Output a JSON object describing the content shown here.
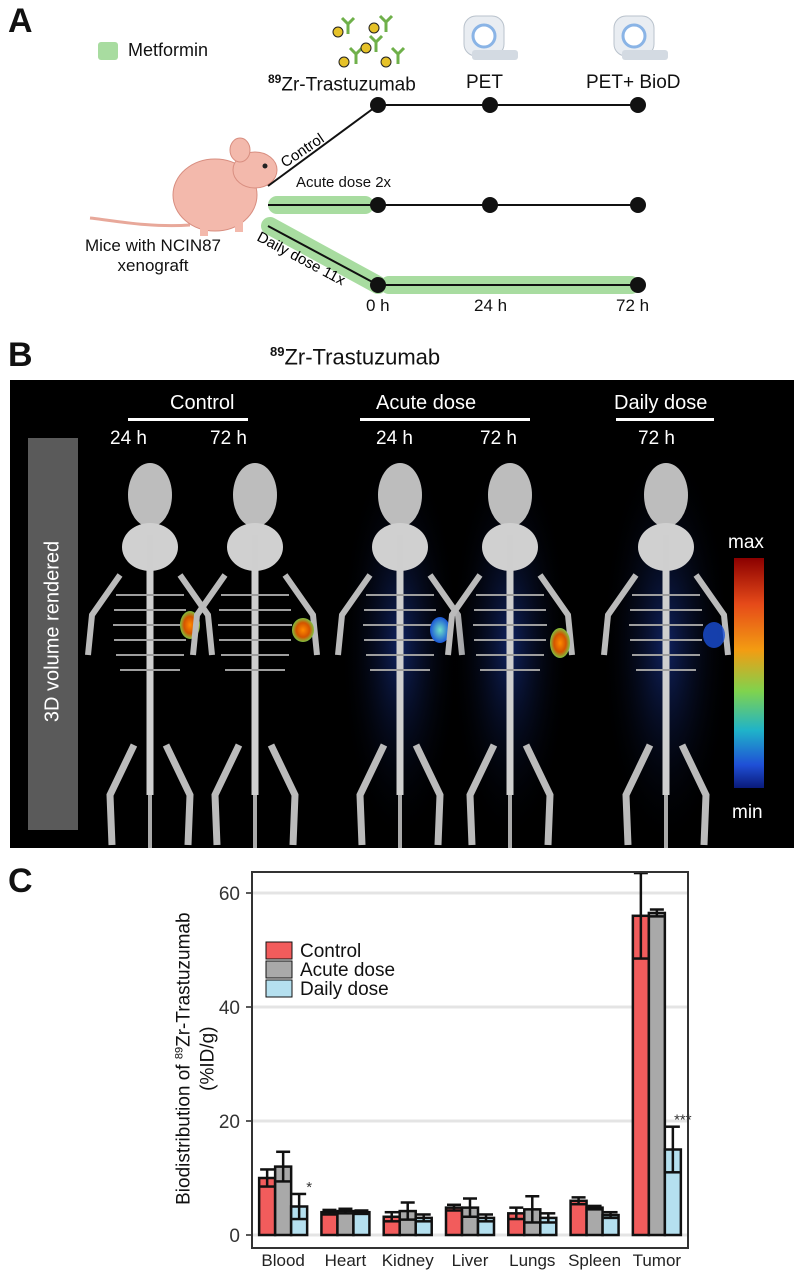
{
  "panel_a": {
    "letter": "A",
    "legend_label": "Metformin",
    "legend_color": "#a8dca0",
    "compound": "Zr-Trastuzumab",
    "compound_super": "89",
    "pet_label": "PET",
    "pet_biod_label": "PET+ BioD",
    "mouse_caption_line1": "Mice with NCIN87",
    "mouse_caption_line2": "xenograft",
    "arm_control": "Control",
    "arm_acute": "Acute dose 2x",
    "arm_daily": "Daily dose 11x",
    "time_0": "0 h",
    "time_24": "24 h",
    "time_72": "72 h"
  },
  "panel_b": {
    "letter": "B",
    "title_super": "89",
    "title": "Zr-Trastuzumab",
    "side_label": "3D volume rendered",
    "group_control": "Control",
    "group_acute": "Acute dose",
    "group_daily": "Daily dose",
    "time_24a": "24 h",
    "time_72a": "72 h",
    "time_24b": "24 h",
    "time_72b": "72 h",
    "time_72c": "72 h",
    "scale_max": "max",
    "scale_min": "min"
  },
  "panel_c": {
    "letter": "C"
  },
  "chart_data": {
    "type": "bar",
    "ylabel_prefix": "Biodistribution of ",
    "ylabel_super": "89",
    "ylabel_main": "Zr-Trastuzumab",
    "ylabel_unit": "(%ID/g)",
    "ylim": [
      0,
      65
    ],
    "yticks": [
      "0",
      "20",
      "40",
      "60"
    ],
    "grid": true,
    "legend_position": "top-left",
    "categories": [
      "Blood",
      "Heart",
      "Kidney",
      "Liver",
      "Lungs",
      "Spleen",
      "Tumor"
    ],
    "series": [
      {
        "name": "Control",
        "color": "#f25c5c",
        "values": [
          10.0,
          4.0,
          3.2,
          4.8,
          3.8,
          6.0,
          56.0
        ],
        "errors": [
          1.5,
          0.4,
          0.8,
          0.5,
          1.0,
          0.6,
          7.5
        ]
      },
      {
        "name": "Acute dose",
        "color": "#a9a9a9",
        "values": [
          12.0,
          4.2,
          4.2,
          4.8,
          4.5,
          4.8,
          56.5
        ],
        "errors": [
          2.6,
          0.4,
          1.5,
          1.6,
          2.3,
          0.3,
          0.6
        ]
      },
      {
        "name": "Daily dose",
        "color": "#b5e0ef",
        "values": [
          5.0,
          4.0,
          3.0,
          3.0,
          3.0,
          3.5,
          15.0
        ],
        "errors": [
          2.2,
          0.3,
          0.6,
          0.6,
          0.8,
          0.5,
          4.0
        ]
      }
    ],
    "annotations": [
      {
        "category": "Blood",
        "series": "Daily dose",
        "text": "*"
      },
      {
        "category": "Tumor",
        "series": "Daily dose",
        "text": "***"
      }
    ]
  }
}
